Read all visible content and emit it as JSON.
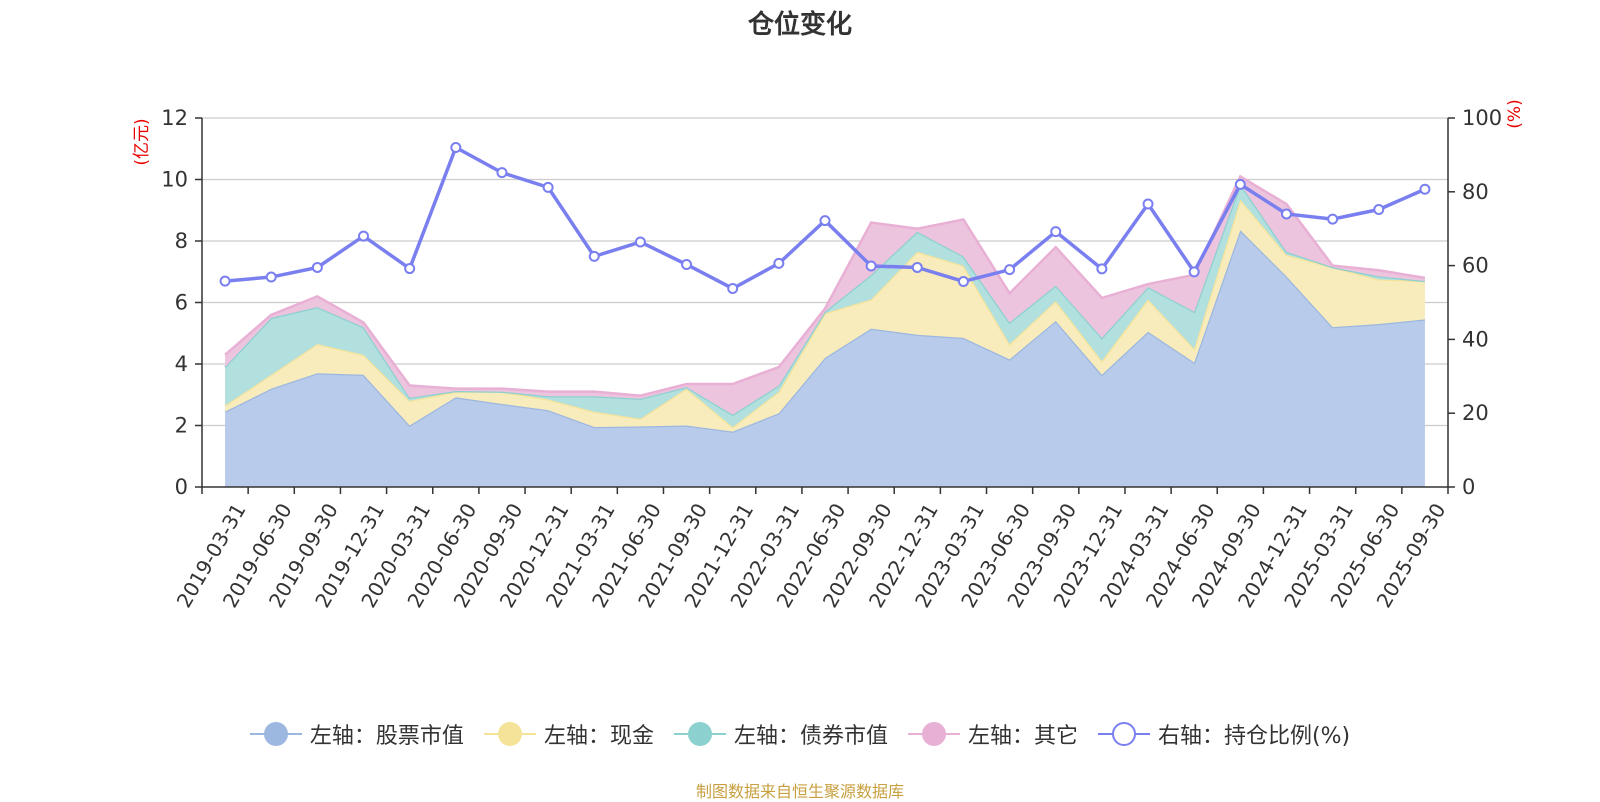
{
  "chart_data": {
    "type": "area",
    "title": "仓位变化",
    "source_note": "制图数据来自恒生聚源数据库",
    "left_axis": {
      "unit": "(亿元)",
      "ylim": [
        0,
        12
      ],
      "ticks": [
        0,
        2,
        4,
        6,
        8,
        10,
        12
      ]
    },
    "right_axis": {
      "unit": "(%)",
      "ylim": [
        0,
        100
      ],
      "ticks": [
        0,
        20,
        40,
        60,
        80,
        100
      ]
    },
    "grid": true,
    "legend_position": "bottom",
    "categories": [
      "2019-03-31",
      "2019-06-30",
      "2019-09-30",
      "2019-12-31",
      "2020-03-31",
      "2020-06-30",
      "2020-09-30",
      "2020-12-31",
      "2021-03-31",
      "2021-06-30",
      "2021-09-30",
      "2021-12-31",
      "2022-03-31",
      "2022-06-30",
      "2022-09-30",
      "2022-12-31",
      "2023-03-31",
      "2023-06-30",
      "2023-09-30",
      "2023-12-31",
      "2024-03-31",
      "2024-06-30",
      "2024-09-30",
      "2024-12-31",
      "2025-03-31",
      "2025-06-30",
      "2025-09-30"
    ],
    "stacked_series": [
      {
        "name": "左轴：股票市值",
        "color": "#9cb7e0",
        "fill": "#b8cbea",
        "values": [
          2.45,
          3.2,
          3.7,
          3.65,
          2.0,
          2.92,
          2.7,
          2.5,
          1.95,
          1.97,
          2.0,
          1.8,
          2.4,
          4.2,
          5.15,
          4.95,
          4.85,
          4.15,
          5.4,
          3.65,
          5.05,
          4.05,
          8.35,
          6.85,
          5.2,
          5.3,
          5.45
        ]
      },
      {
        "name": "左轴：现金",
        "color": "#f5e39a",
        "fill": "#f8ebbc",
        "values": [
          0.2,
          0.45,
          0.95,
          0.65,
          0.8,
          0.18,
          0.4,
          0.35,
          0.5,
          0.25,
          1.2,
          0.15,
          0.7,
          1.45,
          0.95,
          2.7,
          2.35,
          0.5,
          0.65,
          0.45,
          1.05,
          0.45,
          1.0,
          0.7,
          1.95,
          1.45,
          1.25
        ]
      },
      {
        "name": "左轴：债券市值",
        "color": "#8dd0d0",
        "fill": "#b2e0df",
        "values": [
          1.25,
          1.85,
          1.2,
          0.9,
          0.1,
          0.02,
          0.0,
          0.1,
          0.5,
          0.65,
          0.05,
          0.4,
          0.2,
          0.05,
          0.8,
          0.65,
          0.3,
          0.7,
          0.5,
          0.75,
          0.4,
          1.2,
          0.5,
          0.1,
          0.0,
          0.1,
          0.0
        ]
      },
      {
        "name": "左轴：其它",
        "color": "#e8b0d4",
        "fill": "#ecc4de",
        "values": [
          0.4,
          0.1,
          0.35,
          0.15,
          0.4,
          0.08,
          0.1,
          0.15,
          0.15,
          0.1,
          0.1,
          1.0,
          0.6,
          0.1,
          1.7,
          0.1,
          1.2,
          0.95,
          1.25,
          1.3,
          0.1,
          1.2,
          0.25,
          1.55,
          0.05,
          0.2,
          0.1
        ]
      }
    ],
    "line_series": {
      "name": "右轴：持仓比例(%)",
      "color": "#7a7ff0",
      "values": [
        55.8,
        56.9,
        59.5,
        68.0,
        59.2,
        92.0,
        85.2,
        81.2,
        62.5,
        66.4,
        60.3,
        53.8,
        60.6,
        72.2,
        59.9,
        59.5,
        55.7,
        58.9,
        69.2,
        59.1,
        76.7,
        58.3,
        82.0,
        74.0,
        72.6,
        75.2,
        80.7
      ]
    }
  }
}
